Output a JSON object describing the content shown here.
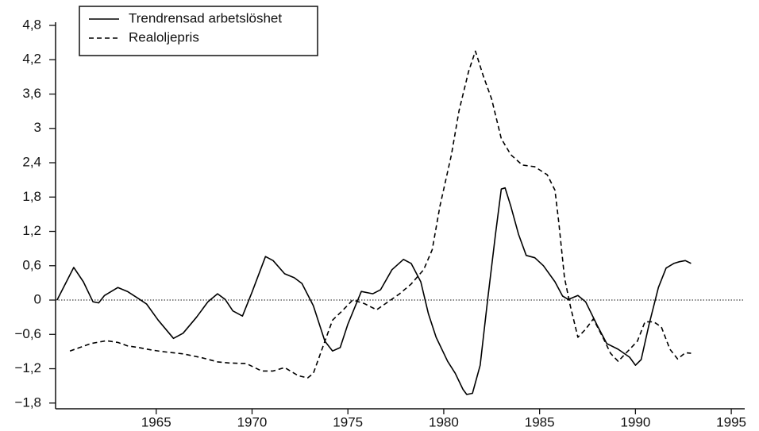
{
  "chart_data": {
    "type": "line",
    "xlim": [
      1959.75,
      1995.7
    ],
    "xticks": [
      1965,
      1970,
      1975,
      1980,
      1985,
      1990,
      1995
    ],
    "ylim": [
      -1.9,
      4.8
    ],
    "yticks": [
      {
        "value": -1.8,
        "label": "−1,8"
      },
      {
        "value": -1.2,
        "label": "−1,2"
      },
      {
        "value": -0.6,
        "label": "−0,6"
      },
      0,
      {
        "value": 0.6,
        "label": "0,6"
      },
      {
        "value": 1.2,
        "label": "1,2"
      },
      {
        "value": 1.8,
        "label": "1,8"
      },
      {
        "value": 2.4,
        "label": "2,4"
      },
      3,
      {
        "value": 3.6,
        "label": "3,6"
      },
      {
        "value": 4.2,
        "label": "4,2"
      },
      {
        "value": 4.8,
        "label": "4,8"
      }
    ],
    "legend": "top-left",
    "series": [
      {
        "name": "Trendrensad arbetslöshet",
        "color": "#000000",
        "line_style": "solid",
        "x": [
          1959.83,
          1960.7,
          1961.2,
          1961.7,
          1962.0,
          1962.3,
          1963.0,
          1963.5,
          1964.1,
          1964.5,
          1965.1,
          1965.9,
          1966.4,
          1967.1,
          1967.7,
          1968.2,
          1968.6,
          1969.0,
          1969.5,
          1970.0,
          1970.7,
          1971.1,
          1971.7,
          1972.2,
          1972.6,
          1973.2,
          1973.8,
          1974.2,
          1974.6,
          1975.0,
          1975.7,
          1976.3,
          1976.7,
          1977.3,
          1977.9,
          1978.3,
          1978.8,
          1979.2,
          1979.6,
          1980.2,
          1980.6,
          1981.0,
          1981.2,
          1981.5,
          1981.9,
          1982.3,
          1982.7,
          1983.0,
          1983.2,
          1983.5,
          1983.9,
          1984.3,
          1984.75,
          1985.2,
          1985.8,
          1986.2,
          1986.5,
          1987.0,
          1987.4,
          1988.0,
          1988.5,
          1989.1,
          1989.7,
          1990.0,
          1990.3,
          1990.7,
          1991.2,
          1991.6,
          1992.0,
          1992.3,
          1992.6,
          1992.9
        ],
        "values": [
          0,
          0.57,
          0.32,
          -0.03,
          -0.05,
          0.08,
          0.22,
          0.15,
          0.02,
          -0.07,
          -0.35,
          -0.67,
          -0.58,
          -0.3,
          -0.03,
          0.11,
          0.01,
          -0.19,
          -0.28,
          0.14,
          0.76,
          0.69,
          0.46,
          0.39,
          0.29,
          -0.1,
          -0.72,
          -0.89,
          -0.83,
          -0.42,
          0.15,
          0.11,
          0.18,
          0.53,
          0.71,
          0.64,
          0.32,
          -0.24,
          -0.65,
          -1.07,
          -1.28,
          -1.56,
          -1.65,
          -1.63,
          -1.14,
          0.04,
          1.15,
          1.94,
          1.96,
          1.64,
          1.15,
          0.78,
          0.74,
          0.6,
          0.32,
          0.07,
          0.01,
          0.08,
          -0.03,
          -0.44,
          -0.76,
          -0.86,
          -1.0,
          -1.14,
          -1.04,
          -0.44,
          0.22,
          0.56,
          0.64,
          0.67,
          0.69,
          0.64
        ]
      },
      {
        "name": "Realoljepris",
        "color": "#000000",
        "line_style": "dashed",
        "x": [
          1960.5,
          1961.0,
          1961.6,
          1962.4,
          1963.0,
          1963.5,
          1964.1,
          1964.7,
          1965.3,
          1966.4,
          1967.4,
          1968.2,
          1968.8,
          1969.7,
          1970.5,
          1971.1,
          1971.7,
          1972.4,
          1972.9,
          1973.2,
          1973.8,
          1974.2,
          1974.7,
          1975.25,
          1975.85,
          1976.5,
          1977.1,
          1977.7,
          1978.3,
          1978.95,
          1979.4,
          1979.8,
          1980.4,
          1980.8,
          1981.3,
          1981.65,
          1982.05,
          1982.5,
          1983.0,
          1983.5,
          1984.1,
          1984.75,
          1985.4,
          1985.8,
          1986.0,
          1986.3,
          1986.6,
          1987.0,
          1987.4,
          1987.8,
          1988.3,
          1988.7,
          1989.1,
          1989.7,
          1990.1,
          1990.5,
          1990.95,
          1991.35,
          1991.8,
          1992.2,
          1992.6,
          1992.9
        ],
        "values": [
          -0.89,
          -0.83,
          -0.76,
          -0.71,
          -0.74,
          -0.8,
          -0.83,
          -0.87,
          -0.9,
          -0.94,
          -1.01,
          -1.08,
          -1.1,
          -1.11,
          -1.24,
          -1.24,
          -1.18,
          -1.32,
          -1.36,
          -1.28,
          -0.72,
          -0.35,
          -0.19,
          0,
          -0.06,
          -0.17,
          -0.03,
          0.11,
          0.28,
          0.53,
          0.88,
          1.64,
          2.54,
          3.31,
          4.0,
          4.35,
          3.93,
          3.51,
          2.82,
          2.54,
          2.36,
          2.33,
          2.19,
          1.92,
          1.36,
          0.39,
          -0.1,
          -0.65,
          -0.51,
          -0.33,
          -0.65,
          -0.93,
          -1.07,
          -0.86,
          -0.72,
          -0.38,
          -0.38,
          -0.47,
          -0.86,
          -1.03,
          -0.92,
          -0.93
        ]
      }
    ]
  }
}
